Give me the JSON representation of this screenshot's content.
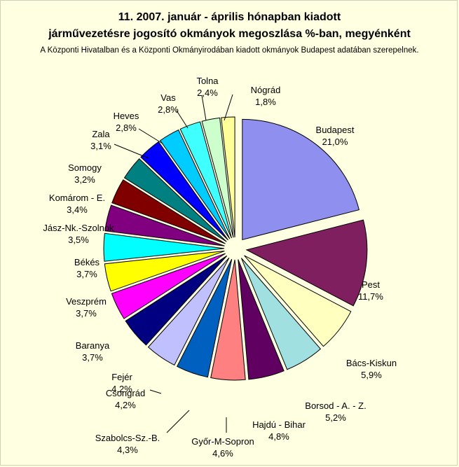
{
  "chart_data": {
    "type": "pie",
    "title_line1": "11. 2007. január - április hónapban kiadott",
    "title_line2": "járművezetésre jogosító okmányok megoszlása %-ban, megyénként",
    "subtitle": "A Központi Hivatalban és a Központi Okmányirodában kiadott okmányok Budapest adatában szerepelnek.",
    "slices": [
      {
        "name": "Budapest",
        "value": 21.0,
        "label": "21,0%",
        "color": "#8f8ff0"
      },
      {
        "name": "Pest",
        "value": 11.7,
        "label": "11,7%",
        "color": "#7f1f5f"
      },
      {
        "name": "Bács-Kiskun",
        "value": 5.9,
        "label": "5,9%",
        "color": "#ffffc0"
      },
      {
        "name": "Borsod - A. - Z.",
        "value": 5.2,
        "label": "5,2%",
        "color": "#a0e0e0"
      },
      {
        "name": "Hajdú - Bihar",
        "value": 4.8,
        "label": "4,8%",
        "color": "#600060"
      },
      {
        "name": "Győr-M-Sopron",
        "value": 4.6,
        "label": "4,6%",
        "color": "#ff8080"
      },
      {
        "name": "Szabolcs-Sz.-B.",
        "value": 4.3,
        "label": "4,3%",
        "color": "#0060c0"
      },
      {
        "name": "Csongrád",
        "value": 4.2,
        "label": "4,2%",
        "color": "#c0c0ff"
      },
      {
        "name": "Fejér",
        "value": 4.2,
        "label": "4,2%",
        "color": "#000080"
      },
      {
        "name": "Baranya",
        "value": 3.7,
        "label": "3,7%",
        "color": "#ff00ff"
      },
      {
        "name": "Veszprém",
        "value": 3.7,
        "label": "3,7%",
        "color": "#ffff00"
      },
      {
        "name": "Békés",
        "value": 3.7,
        "label": "3,7%",
        "color": "#00ffff"
      },
      {
        "name": "Jász-Nk.-Szolnok",
        "value": 3.5,
        "label": "3,5%",
        "color": "#800080"
      },
      {
        "name": "Komárom - E.",
        "value": 3.4,
        "label": "3,4%",
        "color": "#800000"
      },
      {
        "name": "Somogy",
        "value": 3.2,
        "label": "3,2%",
        "color": "#008080"
      },
      {
        "name": "Zala",
        "value": 3.1,
        "label": "3,1%",
        "color": "#0000ff"
      },
      {
        "name": "Heves",
        "value": 2.8,
        "label": "2,8%",
        "color": "#00ccff"
      },
      {
        "name": "Vas",
        "value": 2.8,
        "label": "2,8%",
        "color": "#40ffff"
      },
      {
        "name": "Tolna",
        "value": 2.4,
        "label": "2,4%",
        "color": "#ccffcc"
      },
      {
        "name": "Nógrád",
        "value": 1.8,
        "label": "1,8%",
        "color": "#ffff99"
      }
    ]
  }
}
